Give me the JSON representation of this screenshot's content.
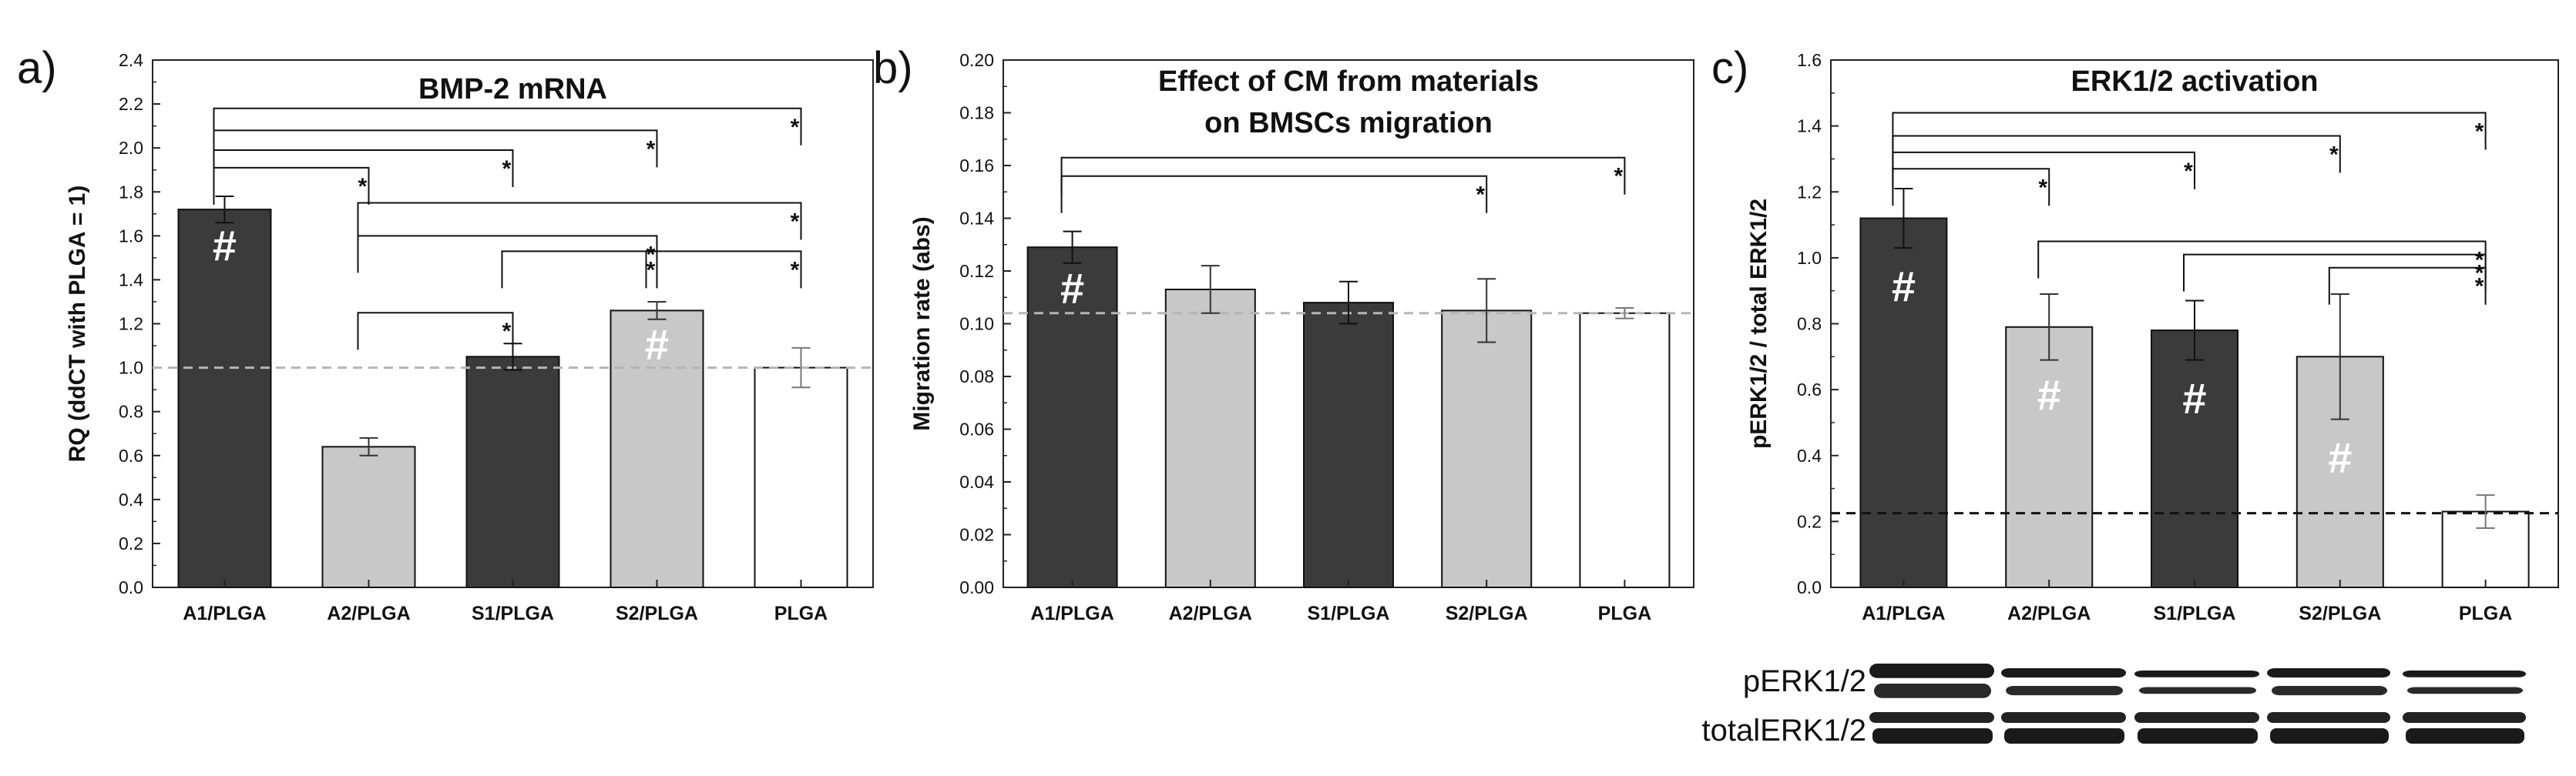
{
  "colors": {
    "dark": "#3b3b3b",
    "light": "#c8c8c8",
    "white": "#ffffff",
    "hash_on_dark": "#ffffff",
    "hash_on_light": "#ffffff",
    "reference_line_ab": "#b5b5b5",
    "reference_line_c": "#111111"
  },
  "chart_data": [
    {
      "type": "bar",
      "panel": "a)",
      "title": [
        "BMP-2 mRNA"
      ],
      "xlabel": "",
      "ylabel": "RQ (ddCT with PLGA = 1)",
      "ylim": [
        0,
        2.4
      ],
      "yticks": [
        "0.0",
        "0.2",
        "0.4",
        "0.6",
        "0.8",
        "1.0",
        "1.2",
        "1.4",
        "1.6",
        "1.8",
        "2.0",
        "2.2",
        "2.4"
      ],
      "categories": [
        "A1/PLGA",
        "A2/PLGA",
        "S1/PLGA",
        "S2/PLGA",
        "PLGA"
      ],
      "values": [
        1.72,
        0.64,
        1.05,
        1.26,
        1.0
      ],
      "errors": [
        0.06,
        0.04,
        0.06,
        0.04,
        0.09
      ],
      "bar_colors": [
        "dark",
        "light",
        "dark",
        "light",
        "white"
      ],
      "hash_marks": [
        {
          "bar": 0,
          "text": "#",
          "at": 1.55
        },
        {
          "bar": 3,
          "text": "#",
          "at": 1.1
        }
      ],
      "reference_line": {
        "value": 1.0,
        "style": "dashed"
      },
      "significance": [
        {
          "from": 0,
          "to": 1,
          "level": 1.91,
          "label": "*"
        },
        {
          "from": 0,
          "to": 2,
          "level": 1.99,
          "label": "*"
        },
        {
          "from": 0,
          "to": 3,
          "level": 2.08,
          "label": "*"
        },
        {
          "from": 0,
          "to": 4,
          "level": 2.18,
          "label": "*"
        },
        {
          "from": 1,
          "to": 4,
          "level": 1.75,
          "label": "*"
        },
        {
          "from": 1,
          "to": 3,
          "level": 1.6,
          "label": "*"
        },
        {
          "from": 2,
          "to": 3,
          "level": 1.53,
          "label": "*"
        },
        {
          "from": 3,
          "to": 4,
          "level": 1.53,
          "label": "*"
        },
        {
          "from": 1,
          "to": 2,
          "level": 1.25,
          "label": "*"
        }
      ]
    },
    {
      "type": "bar",
      "panel": "b)",
      "title": [
        "Effect of CM from materials",
        "on BMSCs migration"
      ],
      "xlabel": "",
      "ylabel": "Migration rate (abs)",
      "ylim": [
        0,
        0.2
      ],
      "yticks": [
        "0.00",
        "0.02",
        "0.04",
        "0.06",
        "0.08",
        "0.10",
        "0.12",
        "0.14",
        "0.16",
        "0.18",
        "0.20"
      ],
      "categories": [
        "A1/PLGA",
        "A2/PLGA",
        "S1/PLGA",
        "S2/PLGA",
        "PLGA"
      ],
      "values": [
        0.129,
        0.113,
        0.108,
        0.105,
        0.104
      ],
      "errors": [
        0.006,
        0.009,
        0.008,
        0.012,
        0.002
      ],
      "bar_colors": [
        "dark",
        "light",
        "dark",
        "light",
        "white"
      ],
      "hash_marks": [
        {
          "bar": 0,
          "text": "#",
          "at": 0.113
        }
      ],
      "reference_line": {
        "value": 0.104,
        "style": "dashed"
      },
      "significance": [
        {
          "from": 0,
          "to": 3,
          "level": 0.156,
          "label": "*"
        },
        {
          "from": 0,
          "to": 4,
          "level": 0.163,
          "label": "*"
        }
      ]
    },
    {
      "type": "bar",
      "panel": "c)",
      "title": [
        "ERK1/2 activation"
      ],
      "xlabel": "",
      "ylabel": "pERK1/2 / total ERK1/2",
      "ylim": [
        0,
        1.6
      ],
      "yticks": [
        "0.0",
        "0.2",
        "0.4",
        "0.6",
        "0.8",
        "1.0",
        "1.2",
        "1.4",
        "1.6"
      ],
      "categories": [
        "A1/PLGA",
        "A2/PLGA",
        "S1/PLGA",
        "S2/PLGA",
        "PLGA"
      ],
      "values": [
        1.12,
        0.79,
        0.78,
        0.7,
        0.23
      ],
      "errors": [
        0.09,
        0.1,
        0.09,
        0.19,
        0.05
      ],
      "bar_colors": [
        "dark",
        "light",
        "dark",
        "light",
        "white"
      ],
      "hash_marks": [
        {
          "bar": 0,
          "text": "#",
          "at": 0.91
        },
        {
          "bar": 1,
          "text": "#",
          "at": 0.58
        },
        {
          "bar": 2,
          "text": "#",
          "at": 0.57
        },
        {
          "bar": 3,
          "text": "#",
          "at": 0.39
        }
      ],
      "reference_line": {
        "value": 0.225,
        "style": "dashed"
      },
      "significance": [
        {
          "from": 0,
          "to": 1,
          "level": 1.27,
          "label": "*"
        },
        {
          "from": 0,
          "to": 2,
          "level": 1.32,
          "label": "*"
        },
        {
          "from": 0,
          "to": 3,
          "level": 1.37,
          "label": "*"
        },
        {
          "from": 0,
          "to": 4,
          "level": 1.44,
          "label": "*"
        },
        {
          "from": 1,
          "to": 4,
          "level": 1.05,
          "label": "*"
        },
        {
          "from": 2,
          "to": 4,
          "level": 1.01,
          "label": "*"
        },
        {
          "from": 3,
          "to": 4,
          "level": 0.97,
          "label": "*"
        }
      ]
    }
  ],
  "blot": {
    "labels": [
      "pERK1/2",
      "totalERK1/2"
    ],
    "lanes": 5
  }
}
